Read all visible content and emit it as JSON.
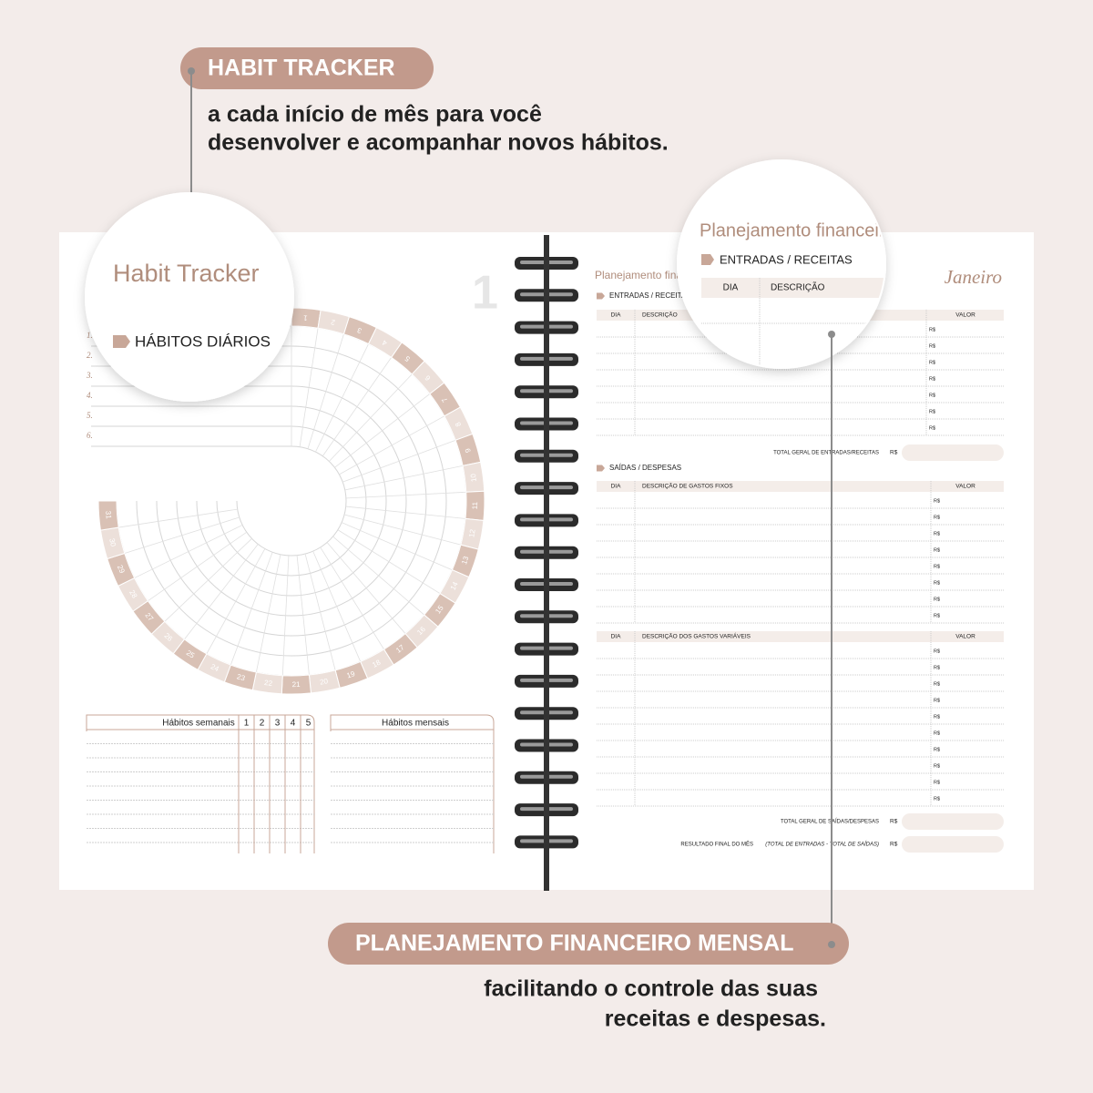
{
  "header": {
    "title": "HABIT TRACKER",
    "lines": [
      "a cada início de mês para você",
      "desenvolver e acompanhar novos hábitos."
    ]
  },
  "footer": {
    "title": "PLANEJAMENTO FINANCEIRO MENSAL",
    "lines": [
      "facilitando o controle das suas",
      "receitas e despesas."
    ]
  },
  "habit_page": {
    "title": "Habit Tracker",
    "page_number": "1",
    "daily_label": "HÁBITOS DIÁRIOS",
    "row_numbers": [
      "1.",
      "2.",
      "3.",
      "4.",
      "5.",
      "6."
    ],
    "days": [
      1,
      2,
      3,
      4,
      5,
      6,
      7,
      8,
      9,
      10,
      11,
      12,
      13,
      14,
      15,
      16,
      17,
      18,
      19,
      20,
      21,
      22,
      23,
      24,
      25,
      26,
      27,
      28,
      29,
      30,
      31
    ],
    "weekly": {
      "title": "Hábitos semanais",
      "weeks": [
        1,
        2,
        3,
        4,
        5
      ]
    },
    "monthly_title": "Hábitos mensais"
  },
  "finance_page": {
    "title": "Planejamento financeiro",
    "month": "Janeiro",
    "currency": "R$",
    "income": {
      "label": "ENTRADAS / RECEITAS",
      "columns": [
        "DIA",
        "DESCRIÇÃO",
        "VALOR"
      ],
      "total": "TOTAL GERAL DE ENTRADAS/RECEITAS"
    },
    "expenses": {
      "label": "SAÍDAS / DESPESAS",
      "fixed_columns": [
        "DIA",
        "DESCRIÇÃO DE GASTOS FIXOS",
        "VALOR"
      ],
      "variable_columns": [
        "DIA",
        "DESCRIÇÃO DOS GASTOS VARIÁVEIS",
        "VALOR"
      ],
      "total": "TOTAL GERAL DE SAÍDAS/DESPESAS",
      "result": "RESULTADO FINAL DO MÊS",
      "result_note": "(TOTAL DE ENTRADAS - TOTAL DE SAÍDAS)"
    }
  }
}
